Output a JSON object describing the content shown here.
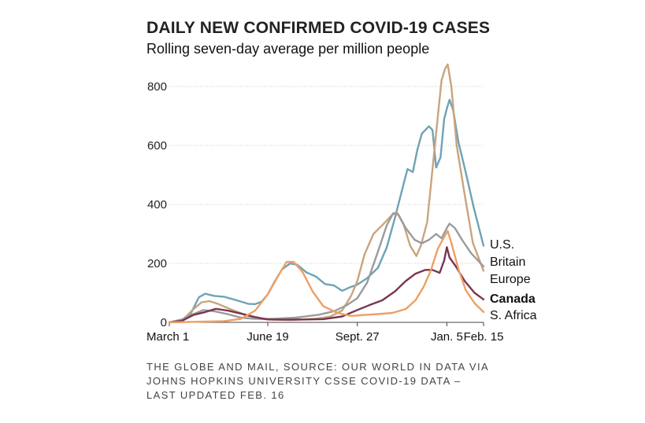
{
  "title": "DAILY NEW CONFIRMED COVID-19 CASES",
  "subtitle": "Rolling seven-day average per million people",
  "source_lines": [
    "THE GLOBE AND MAIL, SOURCE: OUR WORLD IN DATA VIA",
    "JOHNS HOPKINS UNIVERSITY CSSE COVID-19 DATA –",
    "LAST UPDATED FEB. 16"
  ],
  "chart_data": {
    "type": "line",
    "title": "DAILY NEW CONFIRMED COVID-19 CASES",
    "subtitle": "Rolling seven-day average per million people",
    "xlabel": "",
    "ylabel": "",
    "x_unit": "date",
    "x_range": [
      "2020-03-01",
      "2021-02-15"
    ],
    "ylim": [
      0,
      880
    ],
    "y_ticks": [
      0,
      200,
      400,
      600,
      800
    ],
    "x_ticks": [
      {
        "label": "March 1",
        "date": "2020-03-01"
      },
      {
        "label": "June 19",
        "date": "2020-06-19"
      },
      {
        "label": "Sept. 27",
        "date": "2020-09-27"
      },
      {
        "label": "Jan. 5",
        "date": "2021-01-05"
      },
      {
        "label": "Feb. 15",
        "date": "2021-02-15"
      }
    ],
    "grid": "horizontal dotted",
    "legend_placement": "right end labels",
    "series": [
      {
        "name": "U.S.",
        "color": "#6fa3b5",
        "bold": false,
        "points": [
          [
            "2020-03-01",
            0
          ],
          [
            "2020-03-15",
            4
          ],
          [
            "2020-03-25",
            30
          ],
          [
            "2020-04-03",
            85
          ],
          [
            "2020-04-10",
            97
          ],
          [
            "2020-04-20",
            90
          ],
          [
            "2020-05-01",
            87
          ],
          [
            "2020-05-15",
            75
          ],
          [
            "2020-05-28",
            63
          ],
          [
            "2020-06-05",
            62
          ],
          [
            "2020-06-12",
            70
          ],
          [
            "2020-06-19",
            95
          ],
          [
            "2020-06-26",
            135
          ],
          [
            "2020-07-05",
            180
          ],
          [
            "2020-07-14",
            200
          ],
          [
            "2020-07-22",
            195
          ],
          [
            "2020-08-01",
            170
          ],
          [
            "2020-08-12",
            155
          ],
          [
            "2020-08-22",
            130
          ],
          [
            "2020-09-01",
            125
          ],
          [
            "2020-09-10",
            107
          ],
          [
            "2020-09-18",
            118
          ],
          [
            "2020-09-27",
            128
          ],
          [
            "2020-10-08",
            150
          ],
          [
            "2020-10-20",
            185
          ],
          [
            "2020-10-30",
            255
          ],
          [
            "2020-11-08",
            355
          ],
          [
            "2020-11-16",
            450
          ],
          [
            "2020-11-22",
            520
          ],
          [
            "2020-11-28",
            510
          ],
          [
            "2020-12-03",
            585
          ],
          [
            "2020-12-08",
            640
          ],
          [
            "2020-12-16",
            665
          ],
          [
            "2020-12-20",
            652
          ],
          [
            "2020-12-24",
            525
          ],
          [
            "2020-12-29",
            560
          ],
          [
            "2021-01-02",
            690
          ],
          [
            "2021-01-05",
            725
          ],
          [
            "2021-01-08",
            755
          ],
          [
            "2021-01-12",
            720
          ],
          [
            "2021-01-18",
            610
          ],
          [
            "2021-01-26",
            510
          ],
          [
            "2021-02-04",
            390
          ],
          [
            "2021-02-15",
            260
          ]
        ]
      },
      {
        "name": "Britain",
        "color": "#c9a47e",
        "bold": false,
        "points": [
          [
            "2020-03-01",
            0
          ],
          [
            "2020-03-15",
            6
          ],
          [
            "2020-03-28",
            45
          ],
          [
            "2020-04-06",
            68
          ],
          [
            "2020-04-15",
            72
          ],
          [
            "2020-04-25",
            62
          ],
          [
            "2020-05-08",
            45
          ],
          [
            "2020-05-25",
            25
          ],
          [
            "2020-06-10",
            12
          ],
          [
            "2020-06-25",
            9
          ],
          [
            "2020-07-15",
            8
          ],
          [
            "2020-08-10",
            12
          ],
          [
            "2020-08-28",
            20
          ],
          [
            "2020-09-10",
            40
          ],
          [
            "2020-09-20",
            90
          ],
          [
            "2020-09-27",
            140
          ],
          [
            "2020-10-05",
            230
          ],
          [
            "2020-10-15",
            300
          ],
          [
            "2020-10-25",
            330
          ],
          [
            "2020-11-05",
            365
          ],
          [
            "2020-11-10",
            375
          ],
          [
            "2020-11-18",
            330
          ],
          [
            "2020-11-25",
            260
          ],
          [
            "2020-12-02",
            225
          ],
          [
            "2020-12-07",
            260
          ],
          [
            "2020-12-14",
            340
          ],
          [
            "2020-12-20",
            520
          ],
          [
            "2020-12-26",
            700
          ],
          [
            "2020-12-30",
            820
          ],
          [
            "2021-01-03",
            860
          ],
          [
            "2021-01-06",
            875
          ],
          [
            "2021-01-10",
            800
          ],
          [
            "2021-01-16",
            600
          ],
          [
            "2021-01-24",
            450
          ],
          [
            "2021-02-03",
            270
          ],
          [
            "2021-02-15",
            175
          ]
        ]
      },
      {
        "name": "Europe",
        "color": "#9b9b9b",
        "bold": false,
        "points": [
          [
            "2020-03-01",
            0
          ],
          [
            "2020-03-15",
            10
          ],
          [
            "2020-03-28",
            28
          ],
          [
            "2020-04-08",
            42
          ],
          [
            "2020-04-20",
            38
          ],
          [
            "2020-05-05",
            28
          ],
          [
            "2020-05-20",
            16
          ],
          [
            "2020-06-05",
            12
          ],
          [
            "2020-06-25",
            12
          ],
          [
            "2020-07-20",
            16
          ],
          [
            "2020-08-15",
            26
          ],
          [
            "2020-09-01",
            38
          ],
          [
            "2020-09-15",
            58
          ],
          [
            "2020-09-27",
            82
          ],
          [
            "2020-10-08",
            135
          ],
          [
            "2020-10-20",
            240
          ],
          [
            "2020-10-30",
            330
          ],
          [
            "2020-11-06",
            370
          ],
          [
            "2020-11-12",
            365
          ],
          [
            "2020-11-20",
            320
          ],
          [
            "2020-11-30",
            280
          ],
          [
            "2020-12-08",
            268
          ],
          [
            "2020-12-16",
            280
          ],
          [
            "2020-12-24",
            300
          ],
          [
            "2020-12-30",
            285
          ],
          [
            "2021-01-05",
            320
          ],
          [
            "2021-01-08",
            335
          ],
          [
            "2021-01-14",
            320
          ],
          [
            "2021-01-22",
            280
          ],
          [
            "2021-02-01",
            235
          ],
          [
            "2021-02-15",
            190
          ]
        ]
      },
      {
        "name": "Canada",
        "color": "#7a3550",
        "bold": true,
        "points": [
          [
            "2020-03-01",
            0
          ],
          [
            "2020-03-15",
            5
          ],
          [
            "2020-03-28",
            25
          ],
          [
            "2020-04-10",
            35
          ],
          [
            "2020-04-22",
            46
          ],
          [
            "2020-05-05",
            40
          ],
          [
            "2020-05-20",
            30
          ],
          [
            "2020-06-05",
            18
          ],
          [
            "2020-06-19",
            10
          ],
          [
            "2020-07-10",
            9
          ],
          [
            "2020-08-01",
            10
          ],
          [
            "2020-08-20",
            11
          ],
          [
            "2020-09-10",
            20
          ],
          [
            "2020-09-27",
            42
          ],
          [
            "2020-10-10",
            58
          ],
          [
            "2020-10-25",
            75
          ],
          [
            "2020-11-08",
            105
          ],
          [
            "2020-11-20",
            140
          ],
          [
            "2020-12-01",
            165
          ],
          [
            "2020-12-12",
            178
          ],
          [
            "2020-12-20",
            178
          ],
          [
            "2020-12-28",
            168
          ],
          [
            "2021-01-02",
            210
          ],
          [
            "2021-01-05",
            255
          ],
          [
            "2021-01-08",
            220
          ],
          [
            "2021-01-15",
            190
          ],
          [
            "2021-01-25",
            140
          ],
          [
            "2021-02-05",
            100
          ],
          [
            "2021-02-15",
            78
          ]
        ]
      },
      {
        "name": "S. Africa",
        "color": "#eea063",
        "bold": false,
        "points": [
          [
            "2020-03-01",
            0
          ],
          [
            "2020-04-01",
            2
          ],
          [
            "2020-05-01",
            4
          ],
          [
            "2020-05-20",
            12
          ],
          [
            "2020-06-05",
            40
          ],
          [
            "2020-06-19",
            95
          ],
          [
            "2020-07-01",
            160
          ],
          [
            "2020-07-10",
            205
          ],
          [
            "2020-07-18",
            205
          ],
          [
            "2020-07-28",
            170
          ],
          [
            "2020-08-08",
            105
          ],
          [
            "2020-08-20",
            55
          ],
          [
            "2020-09-05",
            32
          ],
          [
            "2020-09-20",
            22
          ],
          [
            "2020-10-05",
            25
          ],
          [
            "2020-10-20",
            28
          ],
          [
            "2020-11-05",
            32
          ],
          [
            "2020-11-20",
            45
          ],
          [
            "2020-12-01",
            75
          ],
          [
            "2020-12-10",
            120
          ],
          [
            "2020-12-18",
            175
          ],
          [
            "2020-12-26",
            250
          ],
          [
            "2021-01-02",
            290
          ],
          [
            "2021-01-06",
            310
          ],
          [
            "2021-01-10",
            270
          ],
          [
            "2021-01-18",
            180
          ],
          [
            "2021-01-26",
            110
          ],
          [
            "2021-02-05",
            65
          ],
          [
            "2021-02-15",
            35
          ]
        ]
      }
    ]
  }
}
